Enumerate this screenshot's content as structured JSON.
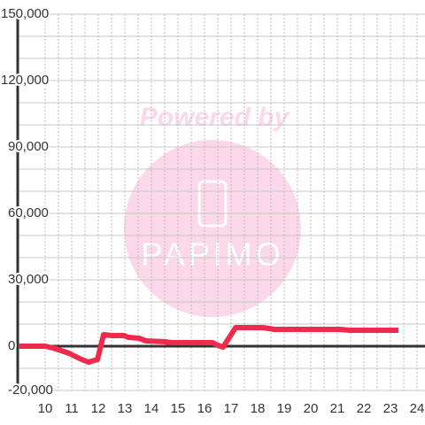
{
  "chart_data": {
    "type": "line",
    "watermark": "Powered by",
    "logo_text": "PAPIMO",
    "x": [
      9.0,
      10.0,
      10.3,
      10.9,
      11.3,
      11.63,
      11.97,
      12.2,
      12.53,
      12.97,
      13.13,
      13.53,
      13.8,
      14.53,
      14.73,
      16.3,
      16.5,
      16.7,
      17.17,
      18.2,
      18.63,
      21.1,
      21.47,
      23.3
    ],
    "series": [
      {
        "color": "#ef2a4c",
        "values": [
          0,
          0,
          -800,
          -3200,
          -5600,
          -7200,
          -6000,
          5200,
          4800,
          4800,
          4000,
          3600,
          2400,
          2000,
          1600,
          1600,
          400,
          -400,
          8400,
          8400,
          7600,
          7600,
          7200,
          7200
        ]
      }
    ],
    "xlim": [
      9,
      24.3
    ],
    "ylim": [
      -20000,
      150000
    ],
    "xticks": [
      10,
      11,
      12,
      13,
      14,
      15,
      16,
      17,
      18,
      19,
      20,
      21,
      22,
      23,
      24
    ],
    "xminorticks": [
      10.5,
      11.5,
      12.5,
      13.5,
      14.5,
      15.5,
      16.5,
      17.5,
      18.5,
      19.5,
      20.5,
      21.5,
      22.5,
      23.5
    ],
    "yticks": [
      {
        "value": -20000,
        "label": "-20,000"
      },
      0,
      {
        "value": 30000,
        "label": "30,000"
      },
      {
        "value": 60000,
        "label": "60,000"
      },
      {
        "value": 90000,
        "label": "90,000"
      },
      {
        "value": 120000,
        "label": "120,000"
      },
      {
        "value": 150000,
        "label": "150,000"
      }
    ],
    "yminorticks": [
      -10000,
      10000,
      20000,
      40000,
      50000,
      70000,
      80000,
      100000,
      110000,
      130000,
      140000
    ],
    "grid": true
  }
}
